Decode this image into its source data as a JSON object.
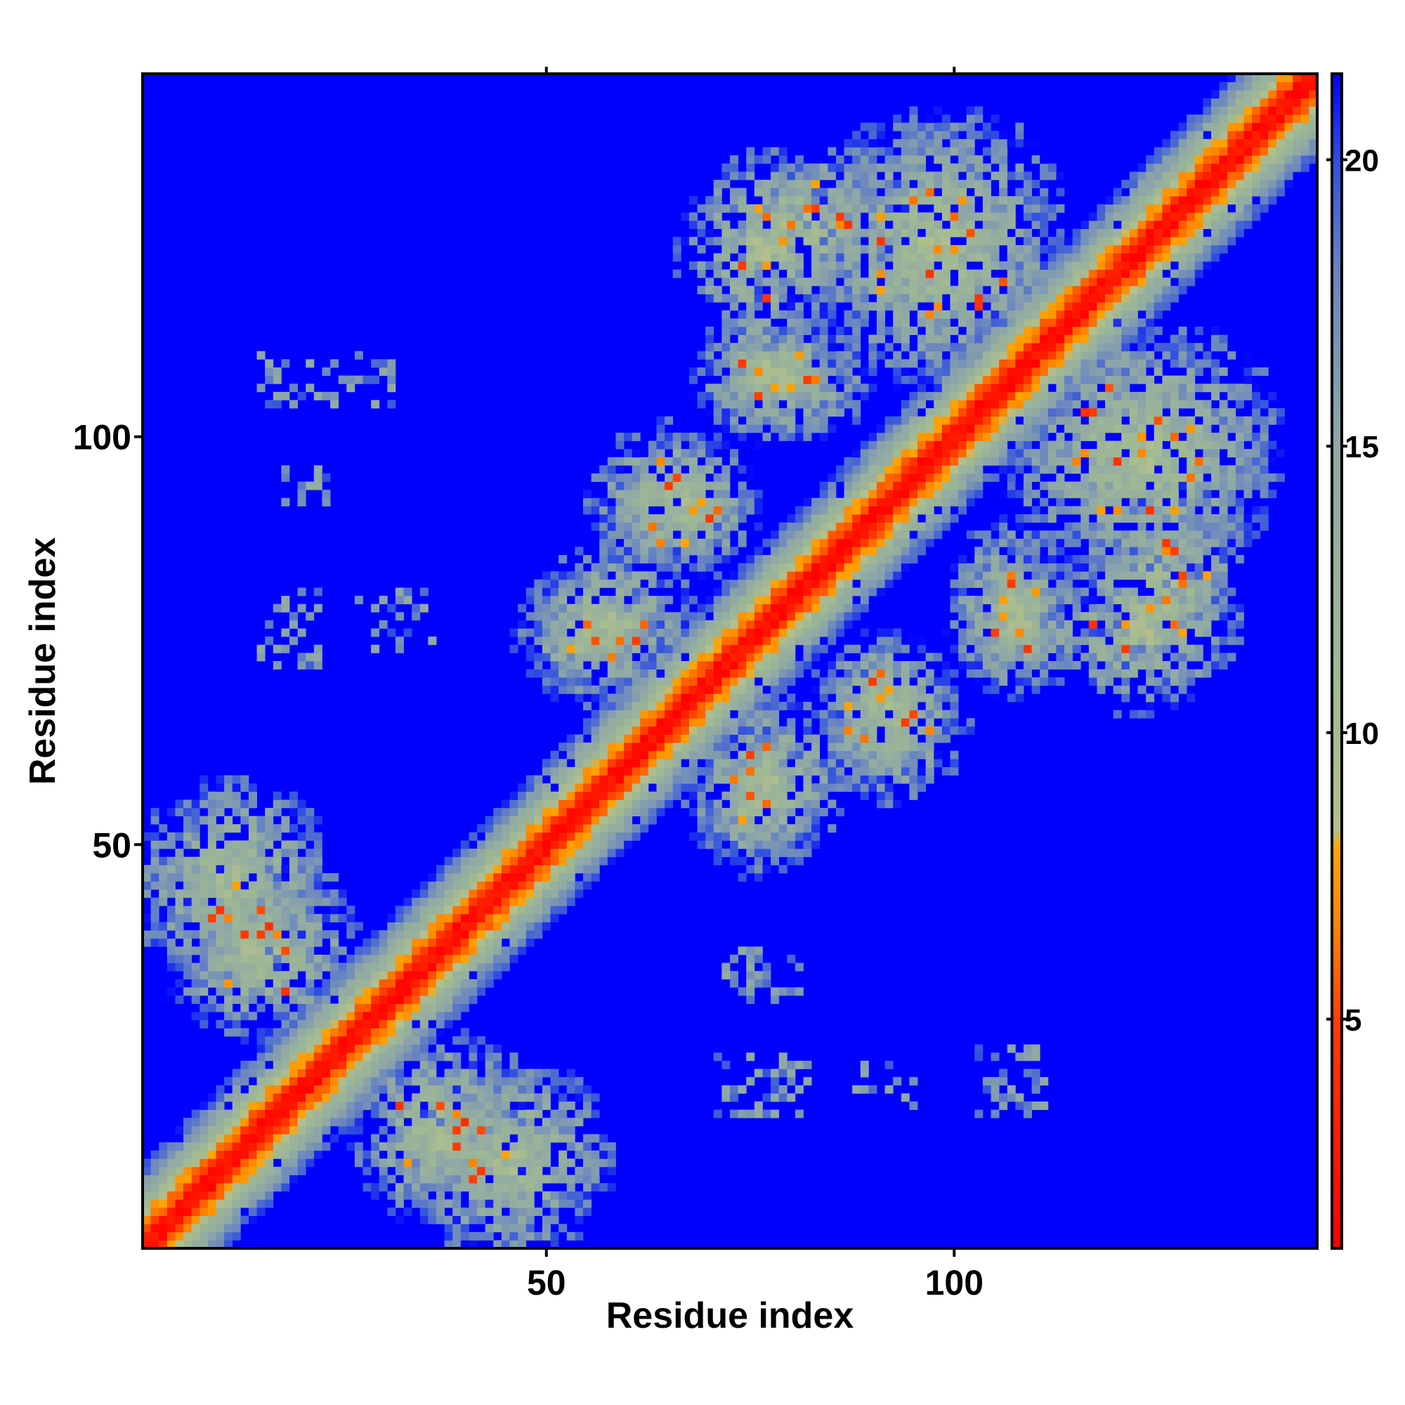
{
  "chart_data": {
    "type": "heatmap",
    "title": "",
    "xlabel": "Residue index",
    "ylabel": "Residue index",
    "n_residues": 144,
    "xlim": [
      0.5,
      144.5
    ],
    "ylim": [
      0.5,
      144.5
    ],
    "x_ticks": [
      {
        "value": 50,
        "label": "50"
      },
      {
        "value": 100,
        "label": "100"
      }
    ],
    "y_ticks": [
      {
        "value": 50,
        "label": "50"
      },
      {
        "value": 100,
        "label": "100"
      }
    ],
    "colorbar": {
      "range": [
        1,
        21.5
      ],
      "ticks": [
        {
          "value": 5,
          "label": "5"
        },
        {
          "value": 10,
          "label": "10"
        },
        {
          "value": 15,
          "label": "15"
        },
        {
          "value": 20,
          "label": "20"
        }
      ],
      "stops": [
        {
          "value": 1,
          "color": "#ff0000"
        },
        {
          "value": 5,
          "color": "#ff4000"
        },
        {
          "value": 6.5,
          "color": "#ff8000"
        },
        {
          "value": 8,
          "color": "#ffa500"
        },
        {
          "value": 8.3,
          "color": "#b4c08c"
        },
        {
          "value": 11,
          "color": "#9fb894"
        },
        {
          "value": 15,
          "color": "#8fa8a6"
        },
        {
          "value": 18,
          "color": "#6a86c0"
        },
        {
          "value": 20,
          "color": "#3050e0"
        },
        {
          "value": 21.5,
          "color": "#0000ff"
        }
      ]
    },
    "background_color": "#0000ff",
    "value_meaning": "pairwise residue distance, capped at ~21.5 (blue = far)",
    "diagonal_band_halfwidth": 9,
    "contact_blocks": [
      {
        "x": [
          1,
          22
        ],
        "y": [
          35,
          56
        ],
        "strength": 0.75
      },
      {
        "x": [
          28,
          46
        ],
        "y": [
          5,
          25
        ],
        "strength": 0.75
      },
      {
        "x": [
          49,
          66
        ],
        "y": [
          70,
          85
        ],
        "strength": 0.6
      },
      {
        "x": [
          69,
          82
        ],
        "y": [
          48,
          64
        ],
        "strength": 0.6
      },
      {
        "x": [
          57,
          73
        ],
        "y": [
          86,
          100
        ],
        "strength": 0.6
      },
      {
        "x": [
          84,
          98
        ],
        "y": [
          58,
          75
        ],
        "strength": 0.6
      },
      {
        "x": [
          70,
          88
        ],
        "y": [
          101,
          113
        ],
        "strength": 0.6
      },
      {
        "x": [
          101,
          115
        ],
        "y": [
          71,
          84
        ],
        "strength": 0.6
      },
      {
        "x": [
          68,
          85
        ],
        "y": [
          113,
          133
        ],
        "strength": 0.5
      },
      {
        "x": [
          118,
          134
        ],
        "y": [
          71,
          92
        ],
        "strength": 0.5
      },
      {
        "x": [
          85,
          112
        ],
        "y": [
          109,
          138
        ],
        "strength": 0.5
      },
      {
        "x": [
          108,
          138
        ],
        "y": [
          85,
          110
        ],
        "strength": 0.5
      }
    ],
    "sparse_blocks": [
      {
        "x": [
          15,
          31
        ],
        "y": [
          104,
          110
        ],
        "density": 0.35
      },
      {
        "x": [
          18,
          23
        ],
        "y": [
          92,
          97
        ],
        "density": 0.35
      },
      {
        "x": [
          15,
          22
        ],
        "y": [
          72,
          81
        ],
        "density": 0.4
      },
      {
        "x": [
          27,
          36
        ],
        "y": [
          74,
          81
        ],
        "density": 0.3
      },
      {
        "x": [
          72,
          81
        ],
        "y": [
          31,
          37
        ],
        "density": 0.35
      },
      {
        "x": [
          71,
          82
        ],
        "y": [
          17,
          24
        ],
        "density": 0.4
      },
      {
        "x": [
          87,
          95
        ],
        "y": [
          18,
          23
        ],
        "density": 0.3
      },
      {
        "x": [
          103,
          111
        ],
        "y": [
          17,
          25
        ],
        "density": 0.35
      },
      {
        "x": [
          119,
          128
        ],
        "y": [
          70,
          80
        ],
        "density": 0.35
      },
      {
        "x": [
          117,
          129
        ],
        "y": [
          100,
          107
        ],
        "density": 0.3
      }
    ]
  }
}
